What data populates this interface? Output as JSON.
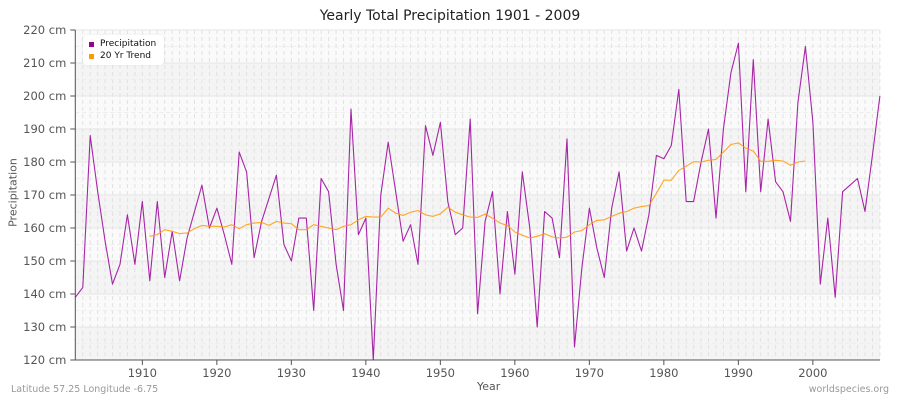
{
  "title": "Yearly Total Precipitation 1901 - 2009",
  "footer": {
    "location": "Latitude 57.25 Longitude -6.75",
    "source": "worldspecies.org"
  },
  "legend": [
    {
      "label": "Precipitation",
      "color": "#990099"
    },
    {
      "label": "20 Yr Trend",
      "color": "#ff9900"
    }
  ],
  "chart_data": {
    "type": "line",
    "title": "Yearly Total Precipitation 1901 - 2009",
    "xlabel": "Year",
    "ylabel": "Precipitation",
    "xlim": [
      1901,
      2009
    ],
    "ylim": [
      120,
      220
    ],
    "y_unit": "cm",
    "x_ticks": [
      1910,
      1920,
      1930,
      1940,
      1950,
      1960,
      1970,
      1980,
      1990,
      2000
    ],
    "y_ticks": [
      "120 cm",
      "130 cm",
      "140 cm",
      "150 cm",
      "160 cm",
      "170 cm",
      "180 cm",
      "190 cm",
      "200 cm",
      "210 cm",
      "220 cm"
    ],
    "grid": true,
    "legend_position": "top-left",
    "series": [
      {
        "name": "Precipitation",
        "color": "#990099",
        "x_start": 1901,
        "values": [
          139,
          142,
          188,
          171,
          156,
          143,
          149,
          164,
          149,
          168,
          144,
          168,
          145,
          159,
          144,
          157,
          165,
          173,
          160,
          166,
          158,
          149,
          183,
          177,
          151,
          162,
          169,
          176,
          155,
          150,
          163,
          163,
          135,
          175,
          171,
          149,
          135,
          196,
          158,
          163,
          120,
          170,
          186,
          171,
          156,
          161,
          149,
          191,
          182,
          192,
          168,
          158,
          160,
          193,
          134,
          162,
          171,
          140,
          165,
          146,
          177,
          160,
          130,
          165,
          163,
          151,
          187,
          124,
          148,
          166,
          154,
          145,
          166,
          177,
          153,
          160,
          153,
          164,
          182,
          181,
          185,
          202,
          168,
          168,
          180,
          190,
          163,
          190,
          207,
          216,
          171,
          211,
          171,
          193,
          174,
          171,
          162,
          198,
          215,
          192,
          143,
          163,
          139,
          171,
          173,
          175,
          165,
          182,
          200
        ]
      },
      {
        "name": "20 Yr Trend",
        "color": "#ff9900",
        "x_start": 1911,
        "values": [
          157.5,
          158,
          159.5,
          159,
          158.3,
          158.5,
          159.8,
          160.8,
          160.5,
          160.5,
          160.3,
          161,
          159.8,
          161,
          161.5,
          161.7,
          160.8,
          162,
          161.5,
          161.3,
          159.5,
          159.5,
          161,
          160.5,
          160,
          159.5,
          160.5,
          161,
          162.5,
          163.5,
          163.3,
          163.3,
          166,
          164.5,
          163.8,
          164.8,
          165.3,
          164,
          163.5,
          164.3,
          166.3,
          164.8,
          164,
          163.3,
          163.2,
          164.2,
          163,
          161.5,
          160.8,
          158.8,
          157.8,
          157,
          157.5,
          158.3,
          157.3,
          157,
          157.2,
          158.8,
          159.2,
          161,
          162.3,
          162.5,
          163.5,
          164.5,
          165,
          166,
          166.5,
          166.8,
          170.5,
          174.5,
          174.5,
          177.5,
          178.7,
          180.1,
          180,
          180.5,
          180.8,
          183,
          185.3,
          185.8,
          184.2,
          183.3,
          180.2,
          180.2,
          180.5,
          180.3,
          179,
          180,
          180.3
        ]
      }
    ]
  }
}
